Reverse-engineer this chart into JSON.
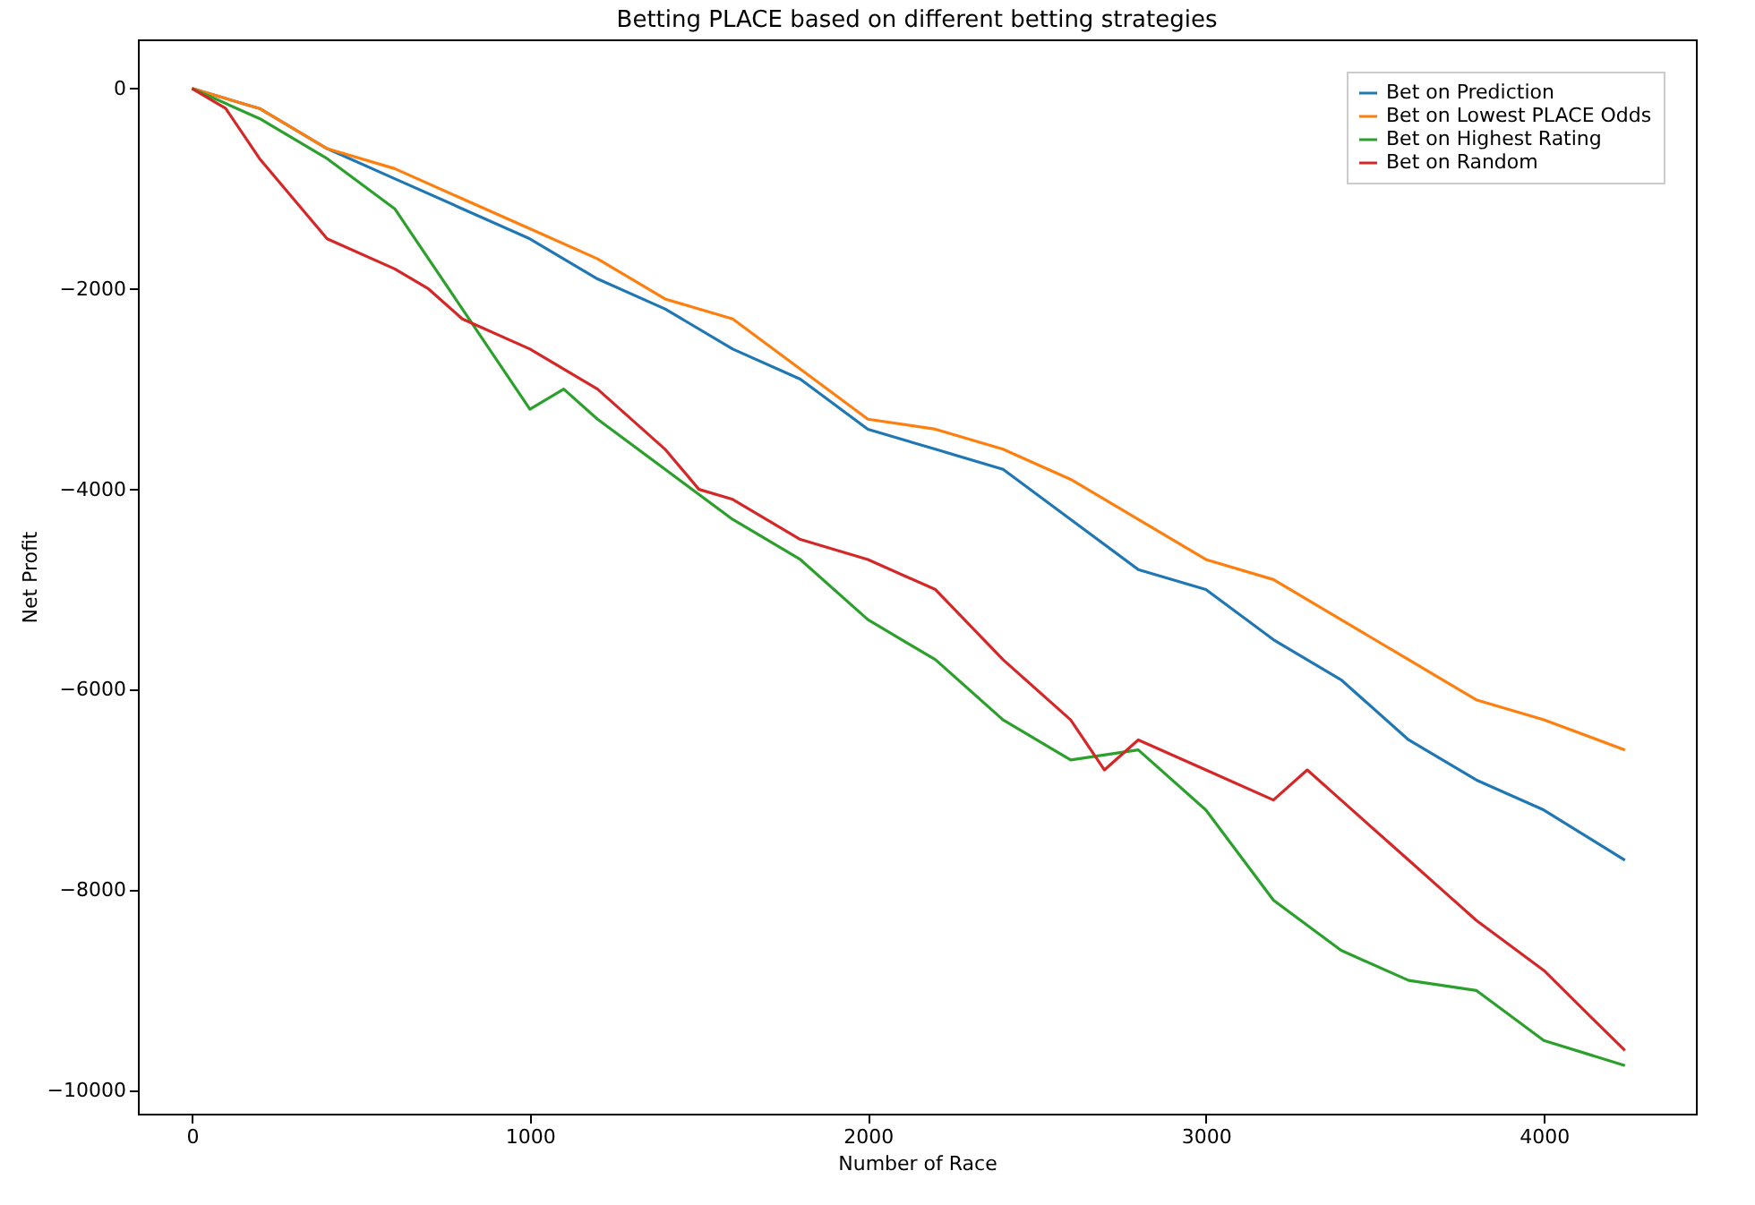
{
  "chart_data": {
    "type": "line",
    "title": "Betting PLACE based on different betting strategies",
    "xlabel": "Number of Race",
    "ylabel": "Net Profit",
    "xlim": [
      -160,
      4450
    ],
    "ylim": [
      -10230,
      490
    ],
    "xticks": [
      0,
      1000,
      2000,
      3000,
      4000
    ],
    "yticks": [
      -10000,
      -8000,
      -6000,
      -4000,
      -2000,
      0
    ],
    "grid": false,
    "legend": "top right",
    "series": [
      {
        "name": "Bet on Prediction",
        "color": "#1f77b4",
        "x": [
          0,
          200,
          400,
          600,
          800,
          1000,
          1200,
          1400,
          1600,
          1800,
          2000,
          2200,
          2400,
          2600,
          2800,
          3000,
          3200,
          3400,
          3600,
          3800,
          4000,
          4240
        ],
        "values": [
          0,
          -200,
          -600,
          -900,
          -1200,
          -1500,
          -1900,
          -2200,
          -2600,
          -2900,
          -3400,
          -3600,
          -3800,
          -4300,
          -4800,
          -5000,
          -5500,
          -5900,
          -6500,
          -6900,
          -7200,
          -7700
        ]
      },
      {
        "name": "Bet on Lowest PLACE Odds",
        "color": "#ff7f0e",
        "x": [
          0,
          200,
          400,
          600,
          800,
          1000,
          1200,
          1400,
          1600,
          1800,
          2000,
          2200,
          2400,
          2600,
          2800,
          3000,
          3200,
          3400,
          3600,
          3800,
          4000,
          4240
        ],
        "values": [
          0,
          -200,
          -600,
          -800,
          -1100,
          -1400,
          -1700,
          -2100,
          -2300,
          -2800,
          -3300,
          -3400,
          -3600,
          -3900,
          -4300,
          -4700,
          -4900,
          -5300,
          -5700,
          -6100,
          -6300,
          -6600
        ]
      },
      {
        "name": "Bet on Highest Rating",
        "color": "#2ca02c",
        "x": [
          0,
          200,
          400,
          600,
          700,
          800,
          900,
          1000,
          1100,
          1200,
          1400,
          1600,
          1800,
          2000,
          2200,
          2400,
          2600,
          2800,
          3000,
          3200,
          3400,
          3600,
          3800,
          4000,
          4240
        ],
        "values": [
          0,
          -300,
          -700,
          -1200,
          -1700,
          -2200,
          -2700,
          -3200,
          -3000,
          -3300,
          -3800,
          -4300,
          -4700,
          -5300,
          -5700,
          -6300,
          -6700,
          -6600,
          -7200,
          -8100,
          -8600,
          -8900,
          -9000,
          -9500,
          -9750
        ]
      },
      {
        "name": "Bet on Random",
        "color": "#d62728",
        "x": [
          0,
          100,
          200,
          300,
          400,
          600,
          700,
          800,
          1000,
          1200,
          1400,
          1500,
          1600,
          1800,
          2000,
          2200,
          2400,
          2600,
          2700,
          2800,
          3000,
          3200,
          3300,
          3400,
          3600,
          3700,
          3800,
          4000,
          4240
        ],
        "values": [
          0,
          -200,
          -700,
          -1100,
          -1500,
          -1800,
          -2000,
          -2300,
          -2600,
          -3000,
          -3600,
          -4000,
          -4100,
          -4500,
          -4700,
          -5000,
          -5700,
          -6300,
          -6800,
          -6500,
          -6800,
          -7100,
          -6800,
          -7100,
          -7700,
          -8000,
          -8300,
          -8800,
          -9600
        ]
      }
    ]
  }
}
